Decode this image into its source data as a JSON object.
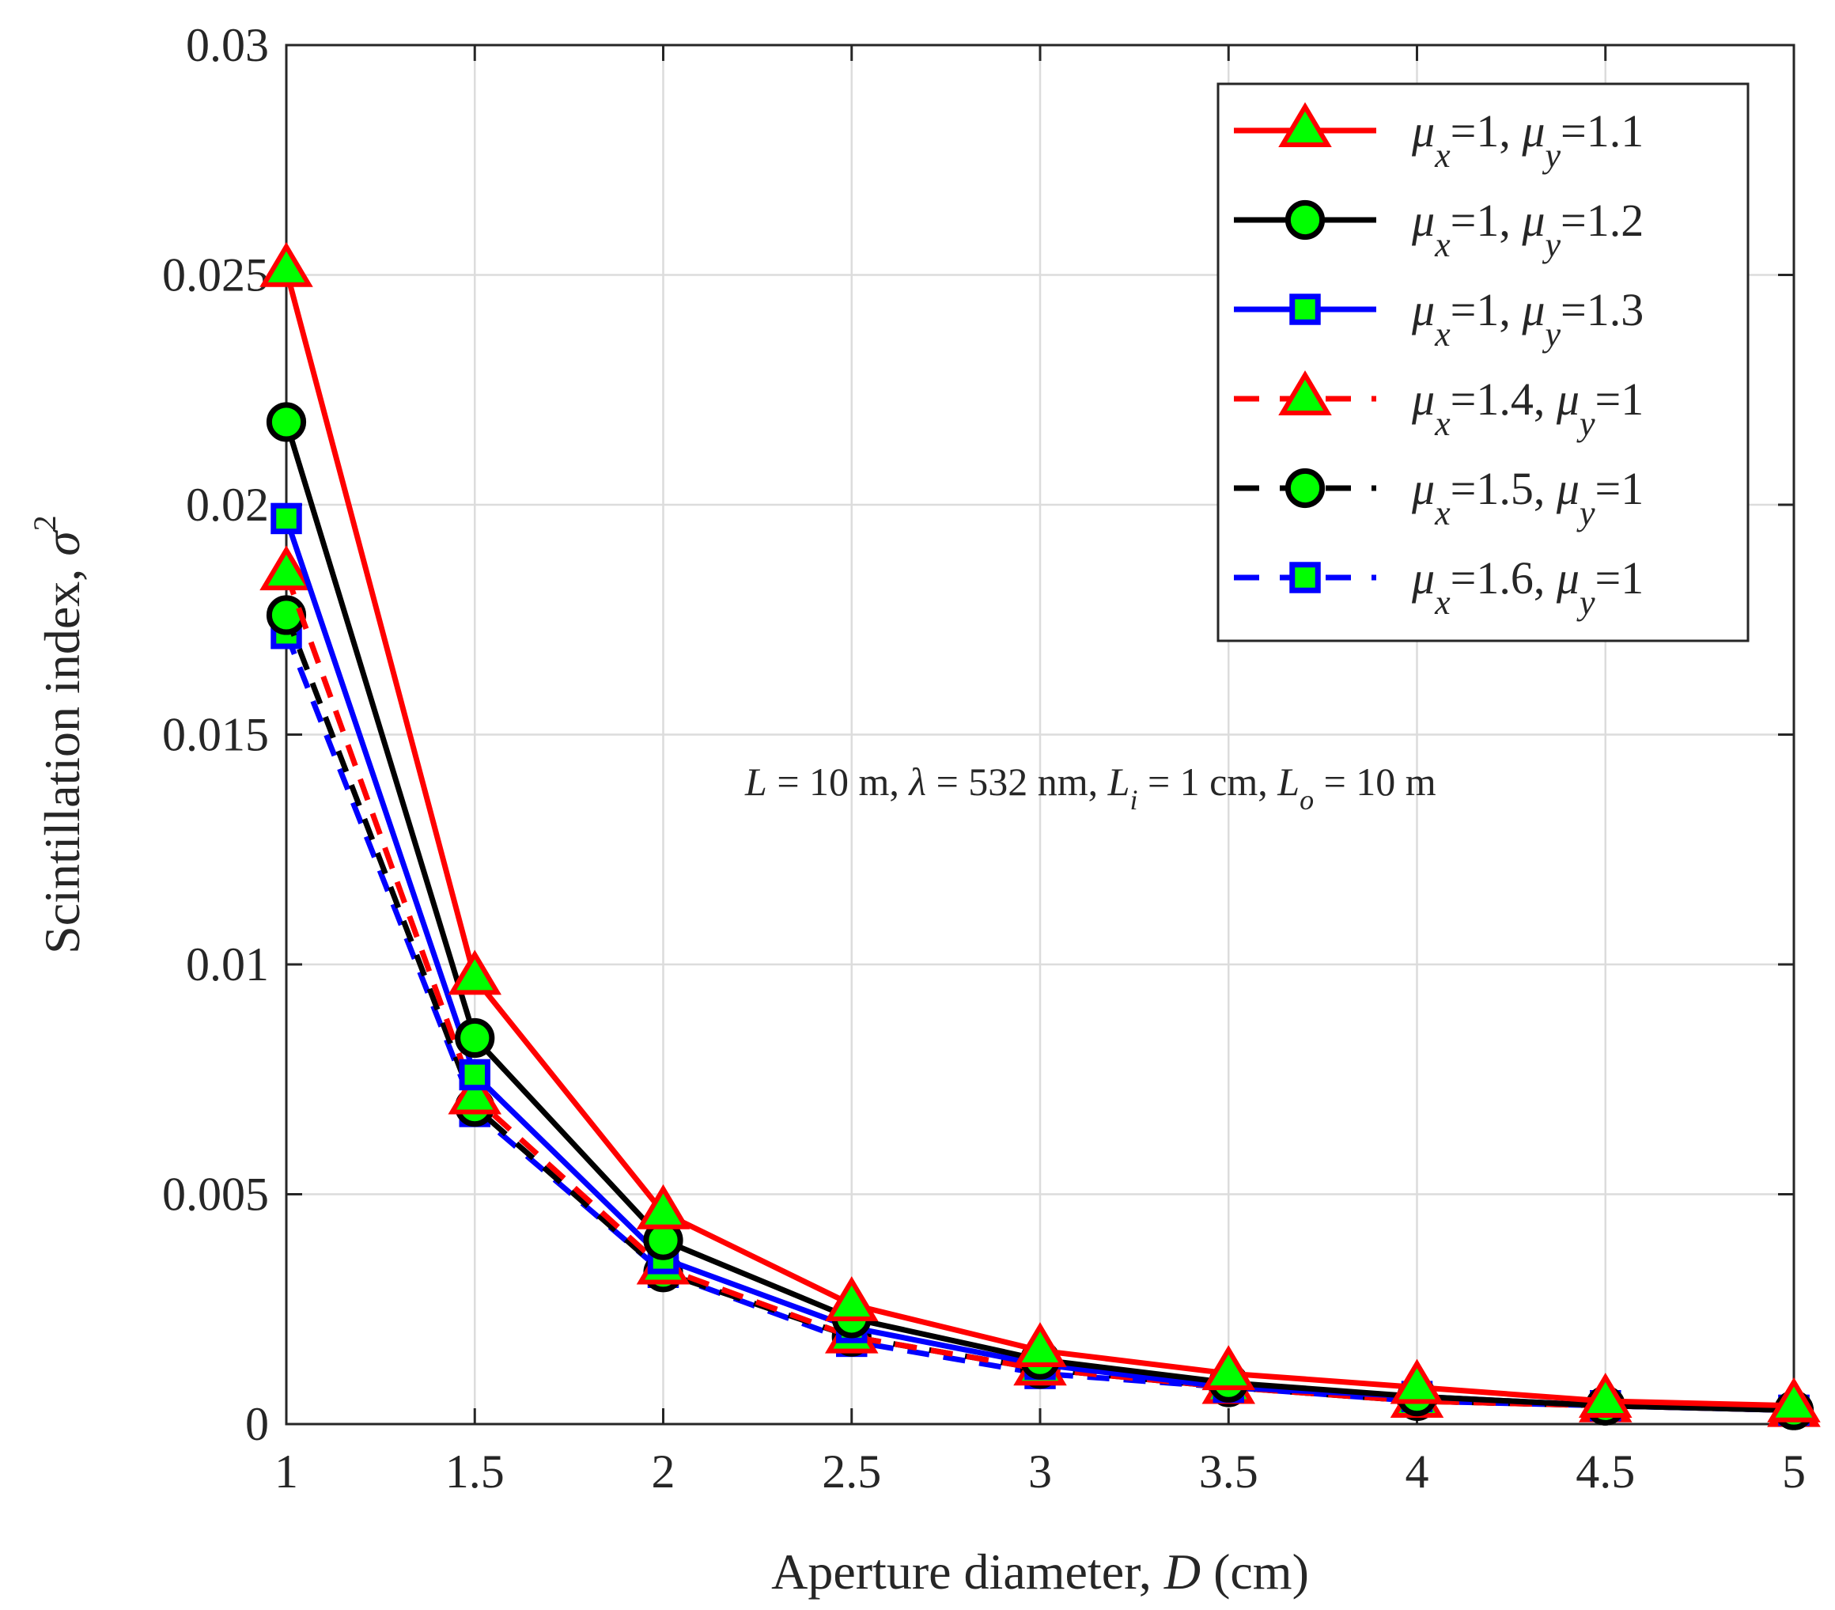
{
  "chart_data": {
    "type": "line",
    "title": "",
    "xlabel_prefix": "Aperture diameter, ",
    "xlabel_var": "D",
    "xlabel_suffix": " (cm)",
    "ylabel_prefix": "Scintillation index, ",
    "ylabel_var": "σ",
    "ylabel_sup": "2",
    "x": [
      1,
      1.5,
      2,
      2.5,
      3,
      3.5,
      4,
      4.5,
      5
    ],
    "xlim": [
      1,
      5
    ],
    "ylim": [
      0,
      0.03
    ],
    "xticks": [
      1,
      1.5,
      2,
      2.5,
      3,
      3.5,
      4,
      4.5,
      5
    ],
    "xtick_labels": [
      "1",
      "1.5",
      "2",
      "2.5",
      "3",
      "3.5",
      "4",
      "4.5",
      "5"
    ],
    "yticks": [
      0,
      0.005,
      0.01,
      0.015,
      0.02,
      0.025,
      0.03
    ],
    "ytick_labels": [
      "0",
      "0.005",
      "0.01",
      "0.015",
      "0.02",
      "0.025",
      "0.03"
    ],
    "grid": true,
    "legend_position": "top-right",
    "marker_fill": "#00ff00",
    "series": [
      {
        "name": "μx=1, μy=1.1",
        "mu_x": "1",
        "mu_y": "1.1",
        "color": "#ff0000",
        "dash": "solid",
        "marker": "triangle",
        "values": [
          0.0251,
          0.0097,
          0.0046,
          0.0026,
          0.0016,
          0.0011,
          0.0008,
          0.0005,
          0.0004
        ]
      },
      {
        "name": "μx=1, μy=1.2",
        "mu_x": "1",
        "mu_y": "1.2",
        "color": "#000000",
        "dash": "solid",
        "marker": "circle",
        "values": [
          0.0218,
          0.0084,
          0.004,
          0.0023,
          0.0014,
          0.0009,
          0.0006,
          0.0004,
          0.0003
        ]
      },
      {
        "name": "μx=1, μy=1.3",
        "mu_x": "1",
        "mu_y": "1.3",
        "color": "#0000ff",
        "dash": "solid",
        "marker": "square",
        "values": [
          0.0197,
          0.0076,
          0.0036,
          0.0021,
          0.0013,
          0.0008,
          0.0006,
          0.0004,
          0.0003
        ]
      },
      {
        "name": "μx=1.4, μy=1",
        "mu_x": "1.4",
        "mu_y": "1",
        "color": "#ff0000",
        "dash": "dashed",
        "marker": "triangle",
        "values": [
          0.0185,
          0.0071,
          0.0034,
          0.0019,
          0.0012,
          0.0008,
          0.0005,
          0.0004,
          0.0003
        ]
      },
      {
        "name": "μx=1.5, μy=1",
        "mu_x": "1.5",
        "mu_y": "1",
        "color": "#000000",
        "dash": "dashed",
        "marker": "circle",
        "values": [
          0.0176,
          0.0069,
          0.0033,
          0.0019,
          0.0012,
          0.0008,
          0.0005,
          0.0004,
          0.0003
        ]
      },
      {
        "name": "μx=1.6, μy=1",
        "mu_x": "1.6",
        "mu_y": "1",
        "color": "#0000ff",
        "dash": "dashed",
        "marker": "square",
        "values": [
          0.0172,
          0.0068,
          0.0033,
          0.0018,
          0.0011,
          0.0008,
          0.0005,
          0.0004,
          0.0003
        ]
      }
    ],
    "annotation": {
      "L_var": "L",
      "L_value": " = 10 m, ",
      "lambda_var": "λ",
      "lambda_value": " = 532 nm, ",
      "Li_var": "L",
      "Li_sub": "i",
      "Li_value": " = 1 cm, ",
      "Lo_var": "L",
      "Lo_sub": "o",
      "Lo_value": " = 10 m"
    }
  }
}
